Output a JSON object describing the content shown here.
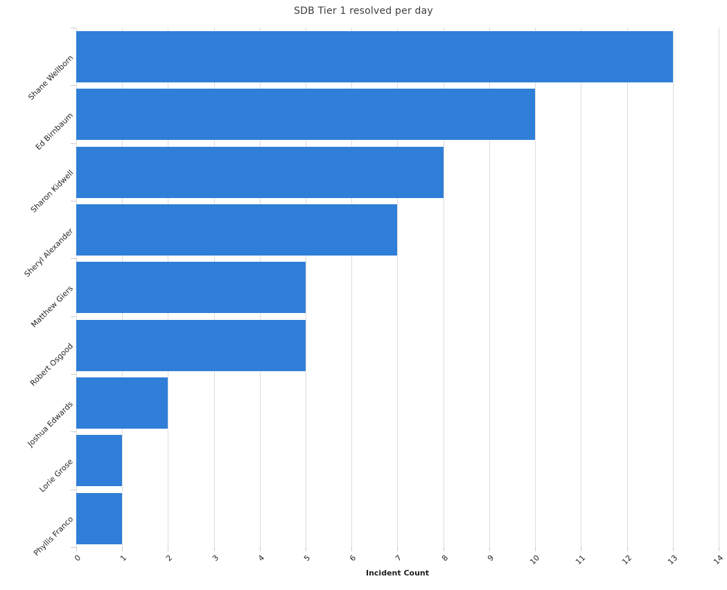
{
  "page": {
    "background_color": "#ffffff"
  },
  "chart_data": {
    "type": "bar",
    "orientation": "horizontal",
    "title": "SDB Tier 1 resolved per day",
    "categories": [
      "Shane Wellborn",
      "Ed Birnbaum",
      "Sharon Kidwell",
      "Sheryl Alexander",
      "Matthew Giers",
      "Robert Osgood",
      "Joshua Edwards",
      "Lorie Grose",
      "Phyllis Franco"
    ],
    "values": [
      13,
      10,
      8,
      7,
      5,
      5,
      2,
      1,
      1
    ],
    "xlabel": "Incident Count",
    "ylabel": "",
    "xlim": [
      0,
      14
    ],
    "xticks": [
      0,
      1,
      2,
      3,
      4,
      5,
      6,
      7,
      8,
      9,
      10,
      11,
      12,
      13,
      14
    ],
    "tick_label_rotation_deg": 45,
    "grid": "vertical-on",
    "legend": "none",
    "bar_color": "#2f7ed8",
    "gridline_color": "#dcdcdc",
    "tick_color": "#c9c9c9",
    "title_color": "#3c3c3c",
    "label_color": "#262626"
  }
}
